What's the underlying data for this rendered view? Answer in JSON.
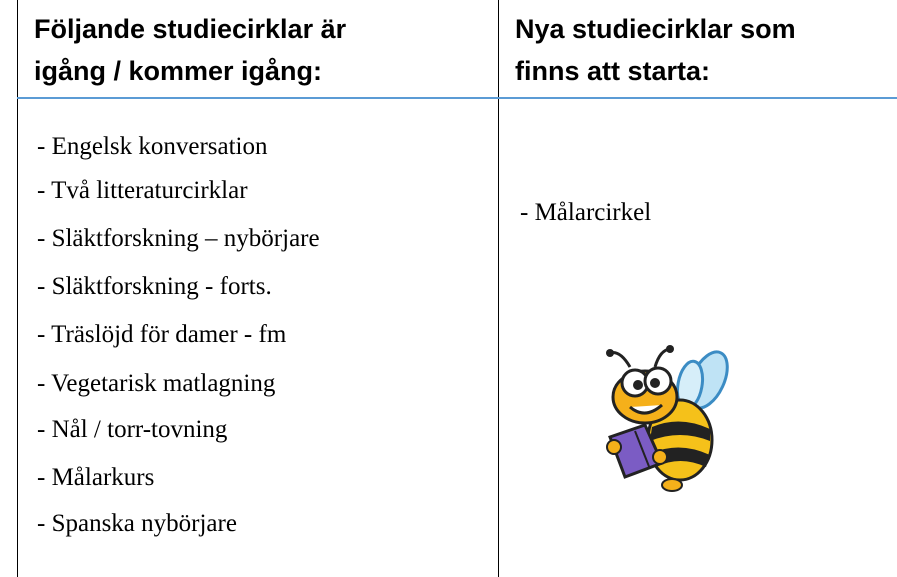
{
  "table": {
    "headers": [
      [
        "Följande studiecirklar är",
        "igång / kommer igång:"
      ],
      [
        "Nya studiecirklar som",
        "finns att starta:"
      ]
    ],
    "left_items": [
      "- Engelsk konversation",
      "- Två litteraturcirklar",
      "- Släktforskning – nybörjare",
      "- Släktforskning - forts.",
      "- Träslöjd för damer - fm",
      "- Vegetarisk matlagning",
      "- Nål / torr-tovning",
      "- Målarkurs",
      "- Spanska nybörjare"
    ],
    "right_items": [
      "- Målarcirkel"
    ]
  }
}
